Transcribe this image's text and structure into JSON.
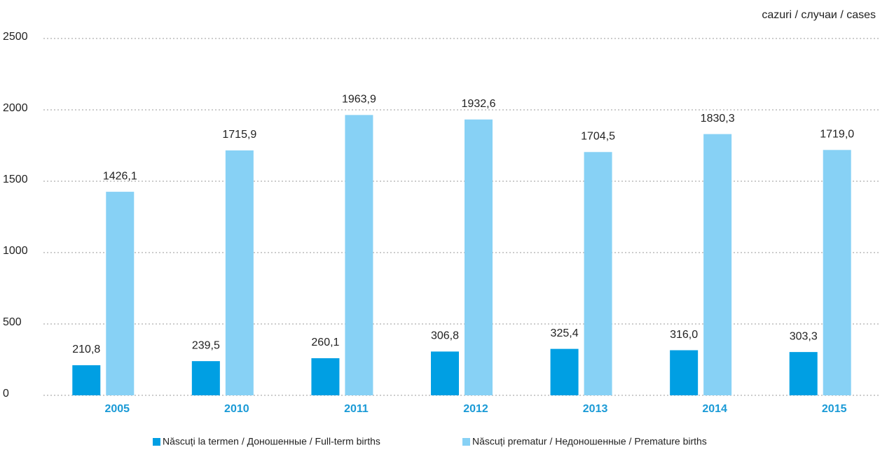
{
  "chart_data": {
    "type": "bar",
    "unit_label": "cazuri / случаи / cases",
    "categories": [
      "2005",
      "2010",
      "2011",
      "2012",
      "2013",
      "2014",
      "2015"
    ],
    "series": [
      {
        "name": "Născuți la termen / Доношенные / Full-term births",
        "color": "#009fe3",
        "values": [
          210.8,
          239.5,
          260.1,
          306.8,
          325.4,
          316.0,
          303.3
        ],
        "value_labels": [
          "210,8",
          "239,5",
          "260,1",
          "306,8",
          "325,4",
          "316,0",
          "303,3"
        ]
      },
      {
        "name": "Născuți prematur / Недоношенные / Premature births",
        "color": "#87d1f5",
        "values": [
          1426.1,
          1715.9,
          1963.9,
          1932.6,
          1704.5,
          1830.3,
          1719.0
        ],
        "value_labels": [
          "1426,1",
          "1715,9",
          "1963,9",
          "1932,6",
          "1704,5",
          "1830,3",
          "1719,0"
        ]
      }
    ],
    "ylim": [
      0,
      2500
    ],
    "yticks": [
      0,
      500,
      1000,
      1500,
      2000,
      2500
    ],
    "grid": true
  }
}
